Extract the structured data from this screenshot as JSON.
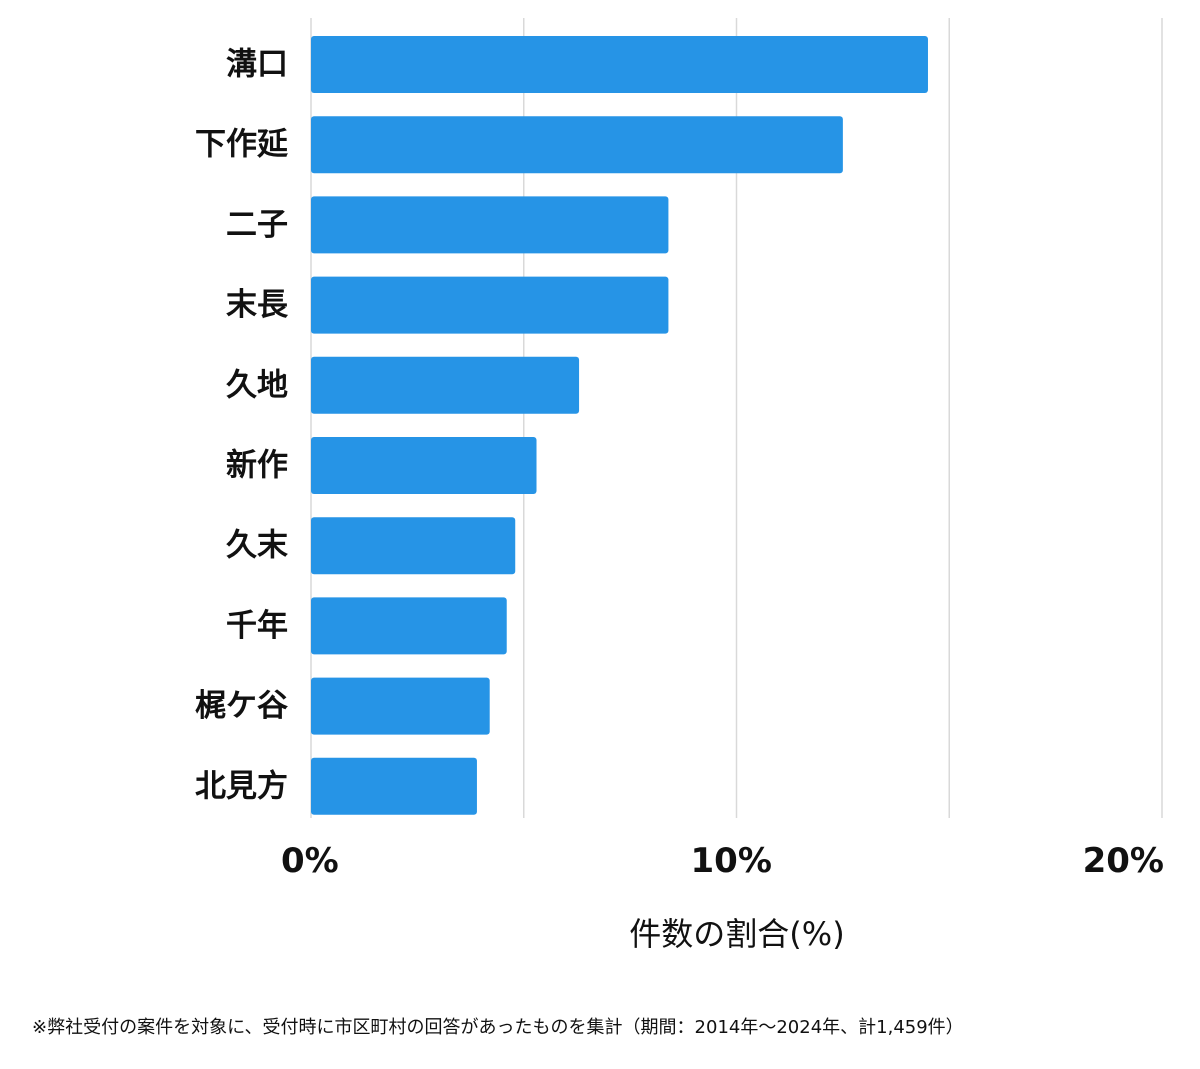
{
  "chart_data": {
    "type": "bar",
    "orientation": "horizontal",
    "categories": [
      "溝口",
      "下作延",
      "二子",
      "末長",
      "久地",
      "新作",
      "久末",
      "千年",
      "梶ケ谷",
      "北見方"
    ],
    "values": [
      14.5,
      12.5,
      8.4,
      8.4,
      6.3,
      5.3,
      4.8,
      4.6,
      4.2,
      3.9
    ],
    "xlim": [
      0,
      20
    ],
    "xticks": [
      0,
      10,
      20
    ],
    "xtick_labels": [
      "0%",
      "10%",
      "20%"
    ],
    "gridlines": [
      0,
      5,
      10,
      15,
      20
    ],
    "grid": true,
    "xlabel": "件数の割合(%)",
    "ylabel": "",
    "title": "",
    "bar_color": "#2694e6"
  },
  "footnote": "※弊社受付の案件を対象に、受付時に市区町村の回答があったものを集計（期間：2014年～2024年、計1,459件）"
}
